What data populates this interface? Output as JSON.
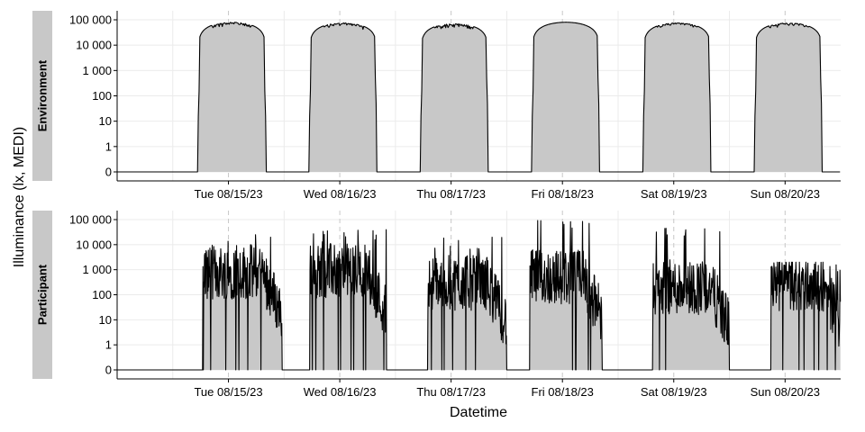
{
  "chart_data": {
    "type": "area",
    "xlabel": "Datetime",
    "ylabel": "Illuminance (lx, MEDI)",
    "y_scale": "symlog",
    "y_ticks": [
      0,
      1,
      10,
      100,
      1000,
      10000,
      100000
    ],
    "y_tick_labels": [
      "0",
      "1",
      "10",
      "100",
      "1 000",
      "10 000",
      "100 000"
    ],
    "x_range": [
      "2023-08-14 12:00",
      "2023-08-20 23:59"
    ],
    "x_ticks": [
      "2023-08-15",
      "2023-08-16",
      "2023-08-17",
      "2023-08-18",
      "2023-08-19",
      "2023-08-20"
    ],
    "x_tick_labels": [
      "Tue 08/15/23",
      "Wed 08/16/23",
      "Thu 08/17/23",
      "Fri 08/18/23",
      "Sat 08/19/23",
      "Sun 08/20/23"
    ],
    "grid": true,
    "fill_color": "#c8c8c8",
    "line_color": "#000000",
    "strip_color": "#c8c8c8",
    "panels": [
      {
        "name": "Environment",
        "days": [
          {
            "date": "2023-08-15",
            "rise": "05:25",
            "set": "20:05",
            "peak": 80000,
            "max": 100000,
            "noise": 0.35
          },
          {
            "date": "2023-08-16",
            "rise": "05:25",
            "set": "20:00",
            "peak": 75000,
            "max": 90000,
            "noise": 0.3
          },
          {
            "date": "2023-08-17",
            "rise": "05:25",
            "set": "20:00",
            "peak": 70000,
            "max": 100000,
            "noise": 0.4
          },
          {
            "date": "2023-08-18",
            "rise": "05:25",
            "set": "20:00",
            "peak": 80000,
            "max": 80000,
            "noise": 0.0
          },
          {
            "date": "2023-08-19",
            "rise": "05:25",
            "set": "20:00",
            "peak": 75000,
            "max": 90000,
            "noise": 0.25
          },
          {
            "date": "2023-08-20",
            "rise": "05:25",
            "set": "20:00",
            "peak": 75000,
            "max": 90000,
            "noise": 0.3
          }
        ]
      },
      {
        "name": "Participant",
        "days": [
          {
            "date": "2023-08-15",
            "onset": "06:30",
            "offset": "23:30",
            "level": 800,
            "max": 30000
          },
          {
            "date": "2023-08-16",
            "onset": "05:30",
            "offset": "22:00",
            "level": 900,
            "max": 40000
          },
          {
            "date": "2023-08-17",
            "onset": "07:00",
            "offset": "23:59",
            "level": 300,
            "max": 20000
          },
          {
            "date": "2023-08-18",
            "onset": "05:00",
            "offset": "20:30",
            "level": 500,
            "max": 100000
          },
          {
            "date": "2023-08-19",
            "onset": "07:30",
            "offset": "23:59",
            "level": 200,
            "max": 50000
          },
          {
            "date": "2023-08-20",
            "onset": "09:00",
            "offset": "23:59",
            "level": 250,
            "max": 2000
          }
        ]
      }
    ]
  }
}
